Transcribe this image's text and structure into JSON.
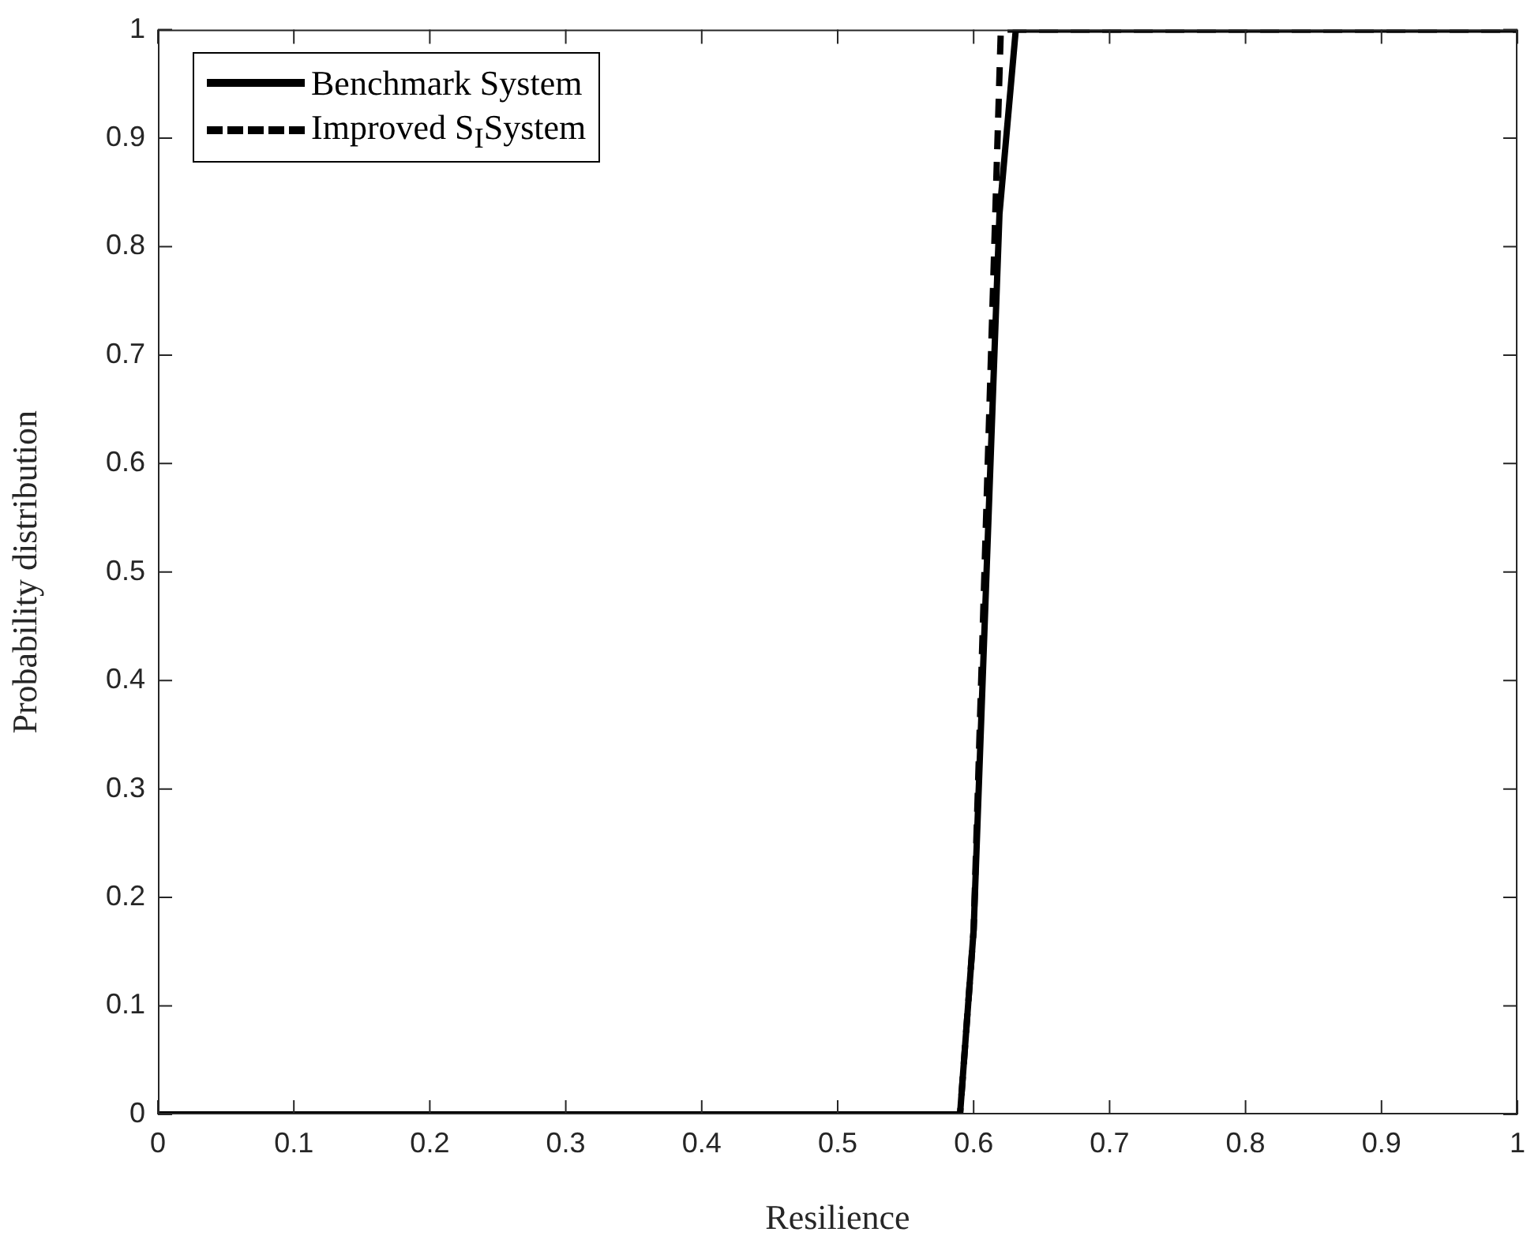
{
  "chart_data": {
    "type": "line",
    "xlabel": "Resilience",
    "ylabel": "Probability distribution",
    "xlim": [
      0,
      1
    ],
    "xticks": [
      0,
      0.1,
      0.2,
      0.3,
      0.4,
      0.5,
      0.6,
      0.7,
      0.8,
      0.9,
      1
    ],
    "ylim": [
      0,
      1
    ],
    "yticks": [
      0,
      0.1,
      0.2,
      0.3,
      0.4,
      0.5,
      0.6,
      0.7,
      0.8,
      0.9,
      1
    ],
    "grid": false,
    "legend": "top left",
    "marker": "none",
    "series": [
      {
        "name": "Benchmark System",
        "color": "#000000",
        "line_style": "solid",
        "x": [
          0,
          0.59,
          0.6,
          0.619,
          0.631,
          1
        ],
        "values": [
          0,
          0,
          0.17,
          0.83,
          1,
          1
        ]
      },
      {
        "name": "Improved S$_{I}$System",
        "color": "#000000",
        "line_style": "dashed",
        "x": [
          0,
          0.59,
          0.6,
          0.62,
          1
        ],
        "values": [
          0,
          0,
          0.17,
          1,
          1
        ]
      }
    ]
  }
}
